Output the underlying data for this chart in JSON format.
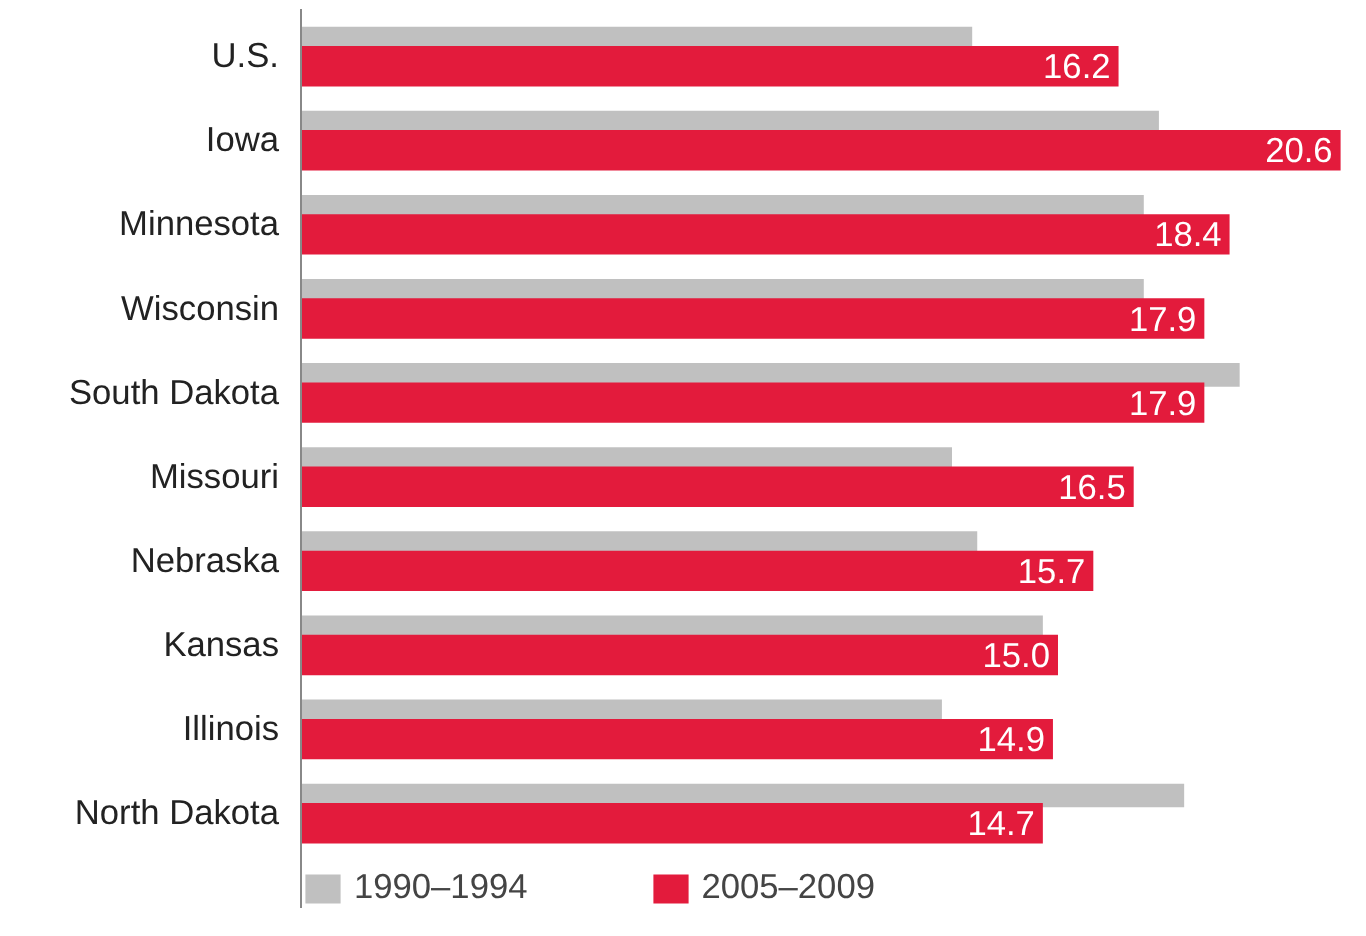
{
  "chart_data": {
    "type": "bar",
    "orientation": "horizontal",
    "categories": [
      "U.S.",
      "Iowa",
      "Minnesota",
      "Wisconsin",
      "South Dakota",
      "Missouri",
      "Nebraska",
      "Kansas",
      "Illinois",
      "North Dakota"
    ],
    "series": [
      {
        "name": "1990–1994",
        "color": "#c0c0c0",
        "values": [
          13.3,
          17.0,
          16.7,
          16.7,
          18.6,
          12.9,
          13.4,
          14.7,
          12.7,
          17.5
        ]
      },
      {
        "name": "2005–2009",
        "color": "#e31b3c",
        "values": [
          16.2,
          20.6,
          18.4,
          17.9,
          17.9,
          16.5,
          15.7,
          15.0,
          14.9,
          14.7
        ],
        "value_labels": [
          "16.2",
          "20.6",
          "18.4",
          "17.9",
          "17.9",
          "16.5",
          "15.7",
          "15.0",
          "14.9",
          "14.7"
        ]
      }
    ],
    "legend": "bottom",
    "grid": false
  }
}
